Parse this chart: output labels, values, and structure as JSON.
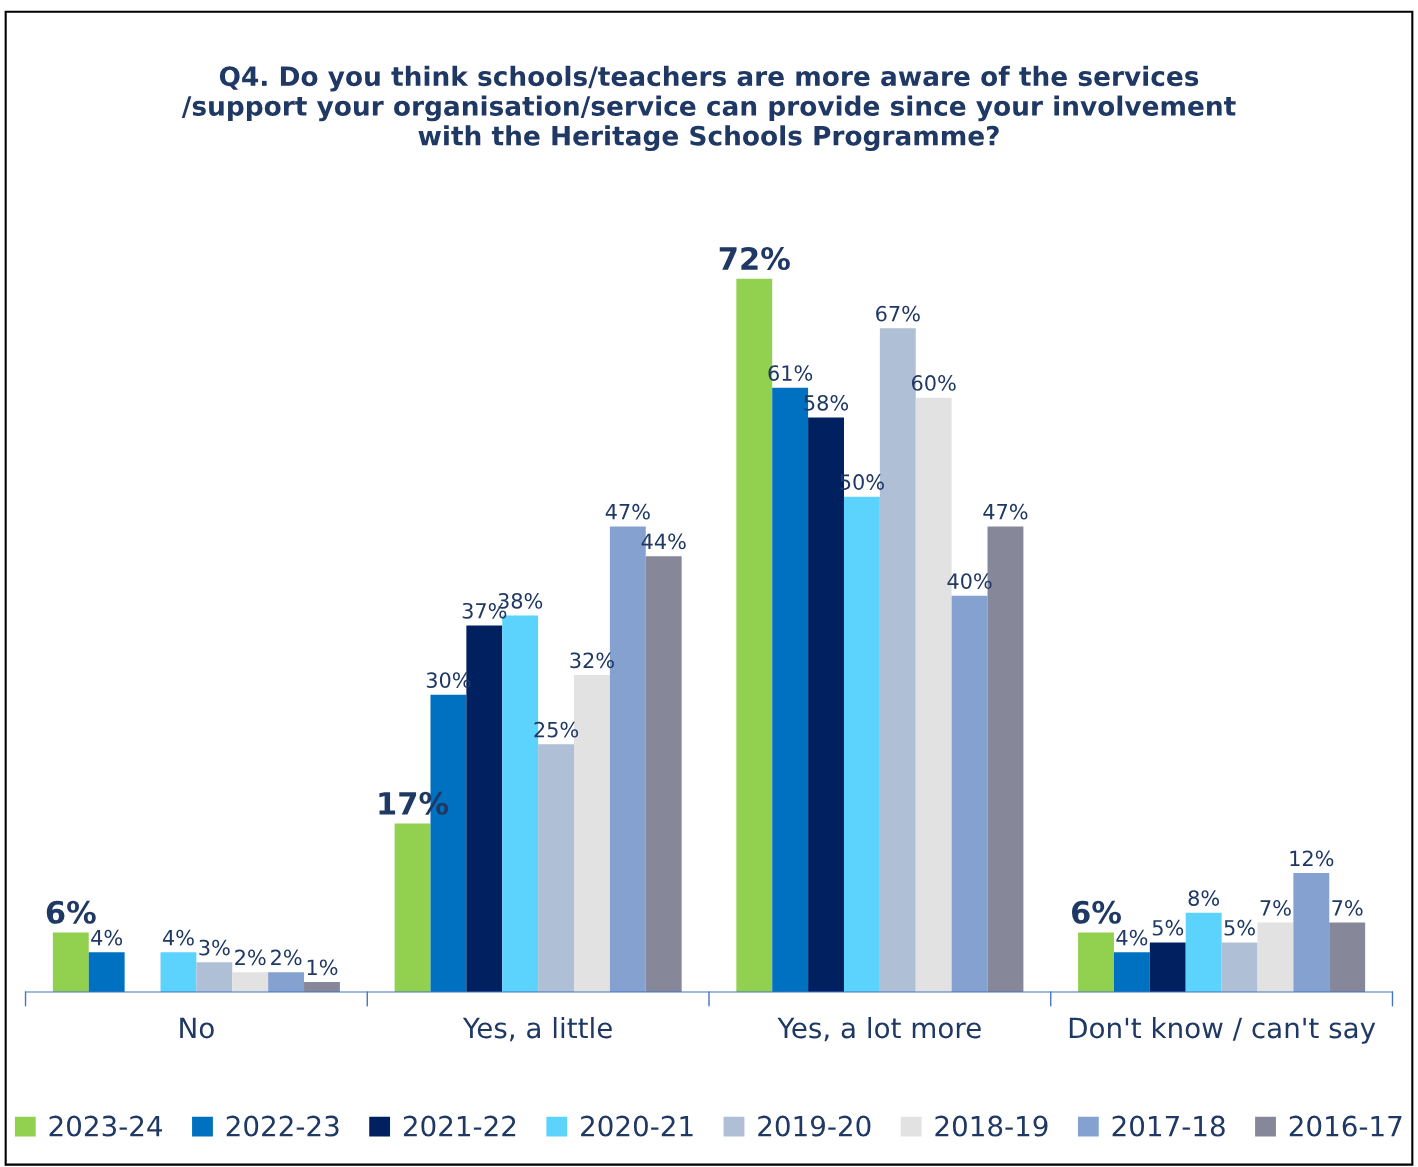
{
  "chart_data": {
    "type": "bar",
    "title": "Q4. Do you think schools/teachers are more aware of the services\n/support your organisation/service can provide since your involvement\nwith the Heritage Schools Programme?",
    "categories": [
      "No",
      "Yes, a little",
      "Yes, a lot more",
      "Don't know / can't say"
    ],
    "series": [
      {
        "name": "2023-24",
        "color": "#92d050",
        "values": [
          6,
          17,
          72,
          6
        ],
        "value_labels": [
          "6%",
          "17%",
          "72%",
          "6%"
        ]
      },
      {
        "name": "2022-23",
        "color": "#0070c0",
        "values": [
          4,
          30,
          61,
          4
        ],
        "value_labels": [
          "4%",
          "30%",
          "61%",
          "4%"
        ]
      },
      {
        "name": "2021-22",
        "color": "#002060",
        "values": [
          null,
          37,
          58,
          5
        ],
        "value_labels": [
          null,
          "37%",
          "58%",
          "5%"
        ]
      },
      {
        "name": "2020-21",
        "color": "#5bd3fd",
        "values": [
          4,
          38,
          50,
          8
        ],
        "value_labels": [
          "4%",
          "38%",
          "50%",
          "8%"
        ]
      },
      {
        "name": "2019-20",
        "color": "#afbfd5",
        "values": [
          3,
          25,
          67,
          5
        ],
        "value_labels": [
          "3%",
          "25%",
          "67%",
          "5%"
        ]
      },
      {
        "name": "2018-19",
        "color": "#e2e2e2",
        "values": [
          2,
          32,
          60,
          7
        ],
        "value_labels": [
          "2%",
          "32%",
          "60%",
          "7%"
        ]
      },
      {
        "name": "2017-18",
        "color": "#85a1d0",
        "values": [
          2,
          47,
          40,
          12
        ],
        "value_labels": [
          "2%",
          "47%",
          "40%",
          "12%"
        ]
      },
      {
        "name": "2016-17",
        "color": "#868799",
        "values": [
          1,
          44,
          47,
          7
        ],
        "value_labels": [
          "1%",
          "44%",
          "47%",
          "7%"
        ]
      }
    ],
    "legend": "bottom",
    "grid": false
  }
}
